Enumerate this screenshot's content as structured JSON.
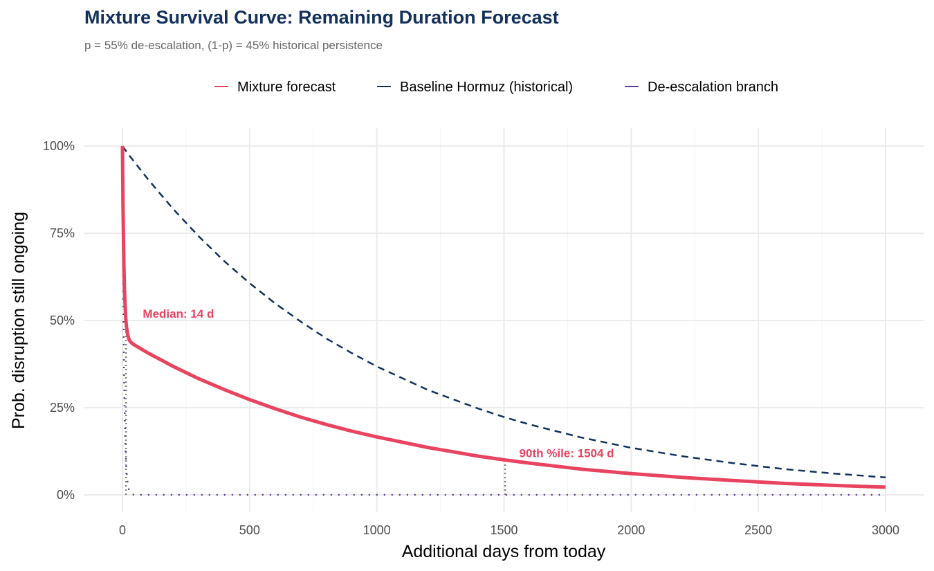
{
  "chart_data": {
    "type": "line",
    "title": "Mixture Survival Curve: Remaining Duration Forecast",
    "subtitle": "p = 55% de-escalation,  (1-p) = 45% historical persistence",
    "xlabel": "Additional days from today",
    "ylabel": "Prob. disruption still ongoing",
    "xlim": [
      0,
      3000
    ],
    "ylim": [
      0,
      1
    ],
    "xticks": [
      0,
      500,
      1000,
      1500,
      2000,
      2500,
      3000
    ],
    "xtick_labels": [
      "0",
      "500",
      "1000",
      "1500",
      "2000",
      "2500",
      "3000"
    ],
    "yticks": [
      0,
      0.25,
      0.5,
      0.75,
      1
    ],
    "ytick_labels": [
      "0%",
      "25%",
      "50%",
      "75%",
      "100%"
    ],
    "grid": true,
    "legend_position": "top",
    "x": [
      0,
      2,
      4,
      6,
      8,
      10,
      12,
      14,
      16,
      20,
      25,
      30,
      40,
      60,
      100,
      200,
      300,
      400,
      500,
      600,
      700,
      800,
      900,
      1000,
      1200,
      1400,
      1504,
      1600,
      1800,
      2000,
      2200,
      2400,
      2600,
      2800,
      3000
    ],
    "series": [
      {
        "name": "Mixture forecast",
        "color": "#E8435F",
        "style": "solid",
        "values": [
          1,
          0.843,
          0.731,
          0.65,
          0.591,
          0.549,
          0.519,
          0.497,
          0.481,
          0.461,
          0.447,
          0.44,
          0.433,
          0.424,
          0.407,
          0.368,
          0.333,
          0.302,
          0.273,
          0.247,
          0.223,
          0.202,
          0.183,
          0.166,
          0.136,
          0.111,
          0.1,
          0.091,
          0.074,
          0.061,
          0.05,
          0.041,
          0.033,
          0.027,
          0.022
        ]
      },
      {
        "name": "Baseline Hormuz (historical)",
        "color": "#13315C",
        "style": "dashed",
        "values": [
          1,
          0.998,
          0.996,
          0.994,
          0.992,
          0.99,
          0.988,
          0.986,
          0.984,
          0.98,
          0.975,
          0.97,
          0.961,
          0.942,
          0.905,
          0.819,
          0.741,
          0.67,
          0.607,
          0.549,
          0.497,
          0.449,
          0.407,
          0.368,
          0.301,
          0.247,
          0.222,
          0.202,
          0.165,
          0.135,
          0.111,
          0.091,
          0.074,
          0.061,
          0.05
        ]
      },
      {
        "name": "De-escalation branch",
        "color": "#5B3A8E",
        "style": "dotted",
        "values": [
          1,
          0.717,
          0.513,
          0.368,
          0.264,
          0.189,
          0.135,
          0.097,
          0.07,
          0.036,
          0.016,
          0.007,
          0.001,
          0,
          0,
          0,
          0,
          0,
          0,
          0,
          0,
          0,
          0,
          0,
          0,
          0,
          0,
          0,
          0,
          0,
          0,
          0,
          0,
          0,
          0
        ]
      }
    ],
    "annotations": [
      {
        "label": "Median: 14 d",
        "x": 14,
        "y": 0.5,
        "color": "#E8435F"
      },
      {
        "label": "90th %ile: 1504 d",
        "x": 1504,
        "y": 0.1,
        "color": "#E8435F"
      }
    ]
  }
}
